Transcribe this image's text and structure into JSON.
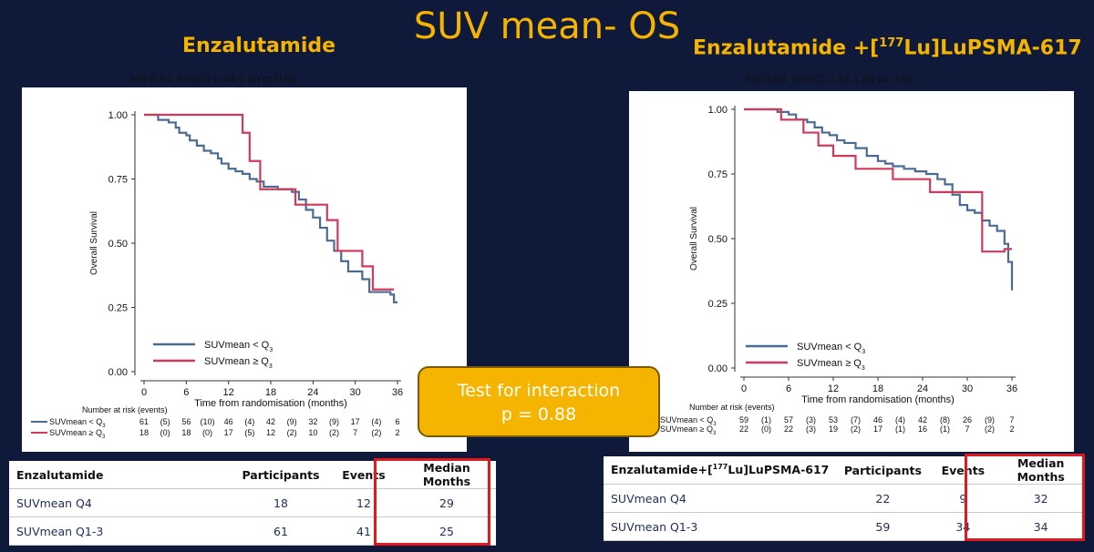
{
  "slide_title": "SUV mean- OS",
  "arms": [
    {
      "title": "Enzalutamide",
      "title_sup": "",
      "title_rest": "",
      "hr": "HR 0.84, 95%CI 0.44-1.60  p=0.59"
    },
    {
      "title": "Enzalutamide +[",
      "title_sup": "177",
      "title_rest": "Lu]LuPSMA-617",
      "hr": "HR 0.80, 95%CI 0.38-1.68  p= 0.56"
    }
  ],
  "interaction": {
    "line1": "Test for interaction",
    "line2": "p = 0.88"
  },
  "chart_data": [
    {
      "type": "line",
      "title": "",
      "xlabel": "Time from randomisation (months)",
      "ylabel": "Overall Survival",
      "xlim": [
        0,
        36
      ],
      "ylim": [
        0,
        1
      ],
      "xticks": [
        0,
        6,
        12,
        18,
        24,
        30,
        36
      ],
      "yticks": [
        "0.00",
        "0.25",
        "0.50",
        "0.75",
        "1.00"
      ],
      "legend_position": "bottom-left",
      "series": [
        {
          "name": "SUVmean < Q",
          "name_sub": "3",
          "color": "#4a6b93",
          "points": [
            [
              0,
              1
            ],
            [
              1.5,
              1
            ],
            [
              2,
              0.98
            ],
            [
              3,
              0.98
            ],
            [
              3.5,
              0.97
            ],
            [
              4.5,
              0.95
            ],
            [
              5,
              0.93
            ],
            [
              6,
              0.92
            ],
            [
              6.5,
              0.9
            ],
            [
              7.5,
              0.88
            ],
            [
              8.5,
              0.86
            ],
            [
              9.5,
              0.85
            ],
            [
              10.5,
              0.83
            ],
            [
              11,
              0.81
            ],
            [
              12,
              0.79
            ],
            [
              13,
              0.78
            ],
            [
              14,
              0.77
            ],
            [
              15,
              0.75
            ],
            [
              16,
              0.74
            ],
            [
              17,
              0.72
            ],
            [
              19,
              0.71
            ],
            [
              21,
              0.7
            ],
            [
              22,
              0.67
            ],
            [
              23,
              0.63
            ],
            [
              24,
              0.6
            ],
            [
              25,
              0.56
            ],
            [
              26,
              0.51
            ],
            [
              27,
              0.47
            ],
            [
              28,
              0.43
            ],
            [
              29,
              0.39
            ],
            [
              30,
              0.39
            ],
            [
              31,
              0.36
            ],
            [
              32,
              0.31
            ],
            [
              35,
              0.3
            ],
            [
              35.5,
              0.27
            ],
            [
              36,
              0.27
            ]
          ]
        },
        {
          "name": "SUVmean ≥ Q",
          "name_sub": "3",
          "color": "#d03a5c",
          "points": [
            [
              0,
              1
            ],
            [
              14,
              1
            ],
            [
              14,
              0.93
            ],
            [
              15,
              0.93
            ],
            [
              15,
              0.82
            ],
            [
              16.5,
              0.82
            ],
            [
              16.5,
              0.71
            ],
            [
              21.5,
              0.71
            ],
            [
              21.5,
              0.65
            ],
            [
              26,
              0.65
            ],
            [
              26,
              0.59
            ],
            [
              27.5,
              0.59
            ],
            [
              27.5,
              0.47
            ],
            [
              31,
              0.47
            ],
            [
              31,
              0.41
            ],
            [
              32.5,
              0.41
            ],
            [
              32.5,
              0.32
            ],
            [
              35.5,
              0.32
            ]
          ]
        }
      ],
      "risk_table": {
        "title": "Number at risk (events)",
        "rows": [
          {
            "label": "SUVmean < Q",
            "sub": "3",
            "values": [
              "61",
              "(5)",
              "56",
              "(10)",
              "46",
              "(4)",
              "42",
              "(9)",
              "32",
              "(9)",
              "17",
              "(4)",
              "6"
            ]
          },
          {
            "label": "SUVmean ≥ Q",
            "sub": "3",
            "values": [
              "18",
              "(0)",
              "18",
              "(0)",
              "17",
              "(5)",
              "12",
              "(2)",
              "10",
              "(2)",
              "7",
              "(2)",
              "2"
            ]
          }
        ]
      }
    },
    {
      "type": "line",
      "title": "",
      "xlabel": "Time from randomisation (months)",
      "ylabel": "Overall Survival",
      "xlim": [
        0,
        36
      ],
      "ylim": [
        0,
        1
      ],
      "xticks": [
        0,
        6,
        12,
        18,
        24,
        30,
        36
      ],
      "yticks": [
        "0.00",
        "0.25",
        "0.50",
        "0.75",
        "1.00"
      ],
      "legend_position": "bottom-left",
      "series": [
        {
          "name": "SUVmean < Q",
          "name_sub": "3",
          "color": "#4a6b93",
          "points": [
            [
              0,
              1
            ],
            [
              4,
              1
            ],
            [
              4.5,
              0.99
            ],
            [
              6,
              0.98
            ],
            [
              7,
              0.96
            ],
            [
              8.5,
              0.95
            ],
            [
              9.5,
              0.93
            ],
            [
              10.5,
              0.91
            ],
            [
              11.5,
              0.9
            ],
            [
              12.5,
              0.88
            ],
            [
              13.5,
              0.87
            ],
            [
              15,
              0.85
            ],
            [
              16.5,
              0.82
            ],
            [
              18,
              0.8
            ],
            [
              19,
              0.79
            ],
            [
              20,
              0.78
            ],
            [
              21.5,
              0.77
            ],
            [
              23,
              0.76
            ],
            [
              24.5,
              0.75
            ],
            [
              26,
              0.73
            ],
            [
              27,
              0.71
            ],
            [
              28,
              0.67
            ],
            [
              29,
              0.63
            ],
            [
              30,
              0.61
            ],
            [
              31,
              0.6
            ],
            [
              32,
              0.57
            ],
            [
              33,
              0.55
            ],
            [
              34,
              0.53
            ],
            [
              35,
              0.48
            ],
            [
              35.5,
              0.41
            ],
            [
              36,
              0.3
            ]
          ]
        },
        {
          "name": "SUVmean ≥ Q",
          "name_sub": "3",
          "color": "#d03a5c",
          "points": [
            [
              0,
              1
            ],
            [
              5,
              1
            ],
            [
              5,
              0.96
            ],
            [
              8,
              0.96
            ],
            [
              8,
              0.91
            ],
            [
              10,
              0.91
            ],
            [
              10,
              0.86
            ],
            [
              12,
              0.86
            ],
            [
              12,
              0.82
            ],
            [
              15,
              0.82
            ],
            [
              15,
              0.77
            ],
            [
              20,
              0.77
            ],
            [
              20,
              0.73
            ],
            [
              25,
              0.73
            ],
            [
              25,
              0.68
            ],
            [
              32,
              0.68
            ],
            [
              32,
              0.45
            ],
            [
              35,
              0.45
            ],
            [
              35,
              0.46
            ],
            [
              36,
              0.46
            ]
          ]
        }
      ],
      "risk_table": {
        "title": "Number at risk (events)",
        "rows": [
          {
            "label": "SUVmean < Q",
            "sub": "3",
            "values": [
              "59",
              "(1)",
              "57",
              "(3)",
              "53",
              "(7)",
              "46",
              "(4)",
              "42",
              "(8)",
              "26",
              "(9)",
              "7"
            ]
          },
          {
            "label": "SUVmean ≥ Q",
            "sub": "3",
            "values": [
              "22",
              "(0)",
              "22",
              "(3)",
              "19",
              "(2)",
              "17",
              "(1)",
              "16",
              "(1)",
              "7",
              "(2)",
              "2"
            ]
          }
        ]
      }
    }
  ],
  "tables": [
    {
      "headers": [
        "Enzalutamide",
        "Participants",
        "Events",
        "Median Months"
      ],
      "header_sup": "",
      "header_rest": "",
      "rows": [
        [
          "SUVmean Q4",
          "18",
          "12",
          "29"
        ],
        [
          "SUVmean Q1-3",
          "61",
          "41",
          "25"
        ]
      ]
    },
    {
      "headers": [
        "Enzalutamide+[",
        "Participants",
        "Events",
        "Median Months"
      ],
      "header_sup": "177",
      "header_rest": "Lu]LuPSMA-617",
      "rows": [
        [
          "SUVmean Q4",
          "22",
          "9",
          "32"
        ],
        [
          "SUVmean Q1-3",
          "59",
          "34",
          "34"
        ]
      ]
    }
  ],
  "colors": {
    "background": "#0f1a3a",
    "accent": "#f4b400",
    "highlight": "#e0191f"
  }
}
